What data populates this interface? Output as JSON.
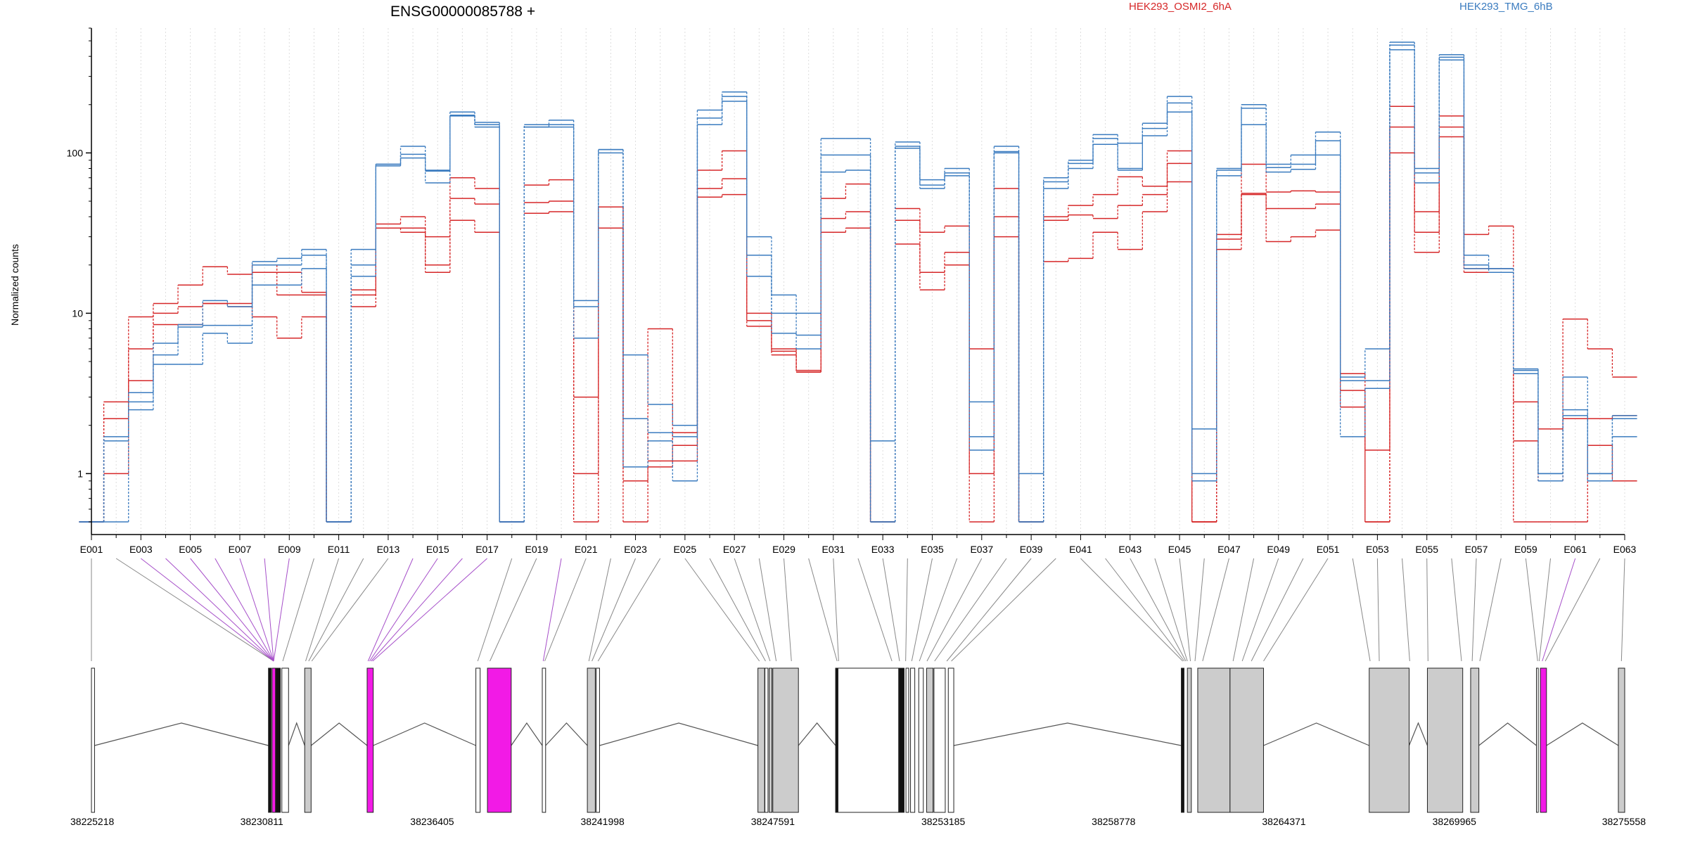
{
  "chart_data": {
    "type": "line",
    "title": "ENSG00000085788 +",
    "ylabel": "Normalized counts",
    "xlabel": "",
    "yscale": "log",
    "ylim": [
      0.5,
      600
    ],
    "yticks": [
      1,
      10,
      100
    ],
    "ytick_labels": [
      "1",
      "10",
      "100"
    ],
    "grid": "vertical-dotted",
    "legend": "top-right",
    "legend_entries": [
      {
        "name": "HEK293_OSMI2_6hA",
        "color": "#d62728"
      },
      {
        "name": "HEK293_TMG_6hB",
        "color": "#3a7bbf"
      }
    ],
    "x_tick_labels": [
      "E001",
      "E003",
      "E005",
      "E007",
      "E009",
      "E011",
      "E013",
      "E015",
      "E017",
      "E019",
      "E021",
      "E023",
      "E025",
      "E027",
      "E029",
      "E031",
      "E033",
      "E035",
      "E037",
      "E039",
      "E041",
      "E043",
      "E045",
      "E047",
      "E049",
      "E051",
      "E053",
      "E055",
      "E057",
      "E059",
      "E061",
      "E063"
    ],
    "categories": [
      "E001",
      "E002",
      "E003",
      "E004",
      "E005",
      "E006",
      "E007",
      "E008",
      "E009",
      "E010",
      "E011",
      "E012",
      "E013",
      "E014",
      "E015",
      "E016",
      "E017",
      "E018",
      "E019",
      "E020",
      "E021",
      "E022",
      "E023",
      "E024",
      "E025",
      "E026",
      "E027",
      "E028",
      "E029",
      "E030",
      "E031",
      "E032",
      "E033",
      "E034",
      "E035",
      "E036",
      "E037",
      "E038",
      "E039",
      "E040",
      "E041",
      "E042",
      "E043",
      "E044",
      "E045",
      "E046",
      "E047",
      "E048",
      "E049",
      "E050",
      "E051",
      "E052",
      "E053",
      "E054",
      "E055",
      "E056",
      "E057",
      "E058",
      "E059",
      "E060",
      "E061",
      "E062",
      "E063"
    ],
    "series": [
      {
        "group": "HEK293_OSMI2_6hA",
        "color": "#d62728",
        "values": [
          0.5,
          2.8,
          9.5,
          11.5,
          15,
          19.5,
          17.5,
          20,
          18,
          13.5,
          0.5,
          14,
          36,
          40,
          30,
          70,
          60,
          0.5,
          63,
          68,
          3,
          46,
          0.9,
          8,
          1.2,
          78,
          103,
          10,
          6,
          4.4,
          52,
          64,
          0.5,
          45,
          32,
          35,
          6,
          60,
          0.5,
          40,
          47,
          55,
          71,
          62,
          103,
          0.5,
          31,
          85,
          57,
          58,
          57,
          4.2,
          0.5,
          195,
          43,
          170,
          31,
          35,
          2.8,
          1.9,
          9.2,
          6,
          4
        ]
      },
      {
        "group": "HEK293_OSMI2_6hA",
        "color": "#d62728",
        "values": [
          0.5,
          2.2,
          6,
          10,
          11,
          11.5,
          11.5,
          18,
          13,
          13,
          0.5,
          11,
          34,
          34,
          20,
          52,
          48,
          0.5,
          49,
          50,
          1,
          46,
          2.2,
          1.2,
          1.8,
          60,
          69,
          9,
          5.8,
          4.3,
          39,
          43,
          0.5,
          38,
          18,
          24,
          1,
          40,
          0.5,
          38,
          41,
          39,
          47,
          55,
          86,
          0.5,
          29,
          56,
          45,
          45,
          48,
          3.3,
          1.4,
          145,
          32,
          145,
          19,
          19,
          1.6,
          0.9,
          2.2,
          2.2,
          2.3
        ]
      },
      {
        "group": "HEK293_OSMI2_6hA",
        "color": "#d62728",
        "values": [
          0.5,
          1.0,
          3.8,
          8.5,
          8.5,
          11.5,
          11,
          9.5,
          7,
          9.5,
          0.5,
          13,
          34,
          32,
          18,
          38,
          32,
          0.5,
          42,
          43,
          0.5,
          34,
          0.5,
          1.1,
          1.5,
          53,
          55,
          8.3,
          5.5,
          4.3,
          32,
          34,
          0.5,
          27,
          14,
          20,
          0.5,
          30,
          0.5,
          21,
          22,
          32,
          25,
          43,
          66,
          0.5,
          25,
          55,
          28,
          30,
          33,
          2.6,
          0.5,
          100,
          24,
          126,
          18,
          18,
          0.5,
          0.5,
          0.5,
          1.5,
          0.9
        ]
      },
      {
        "group": "HEK293_TMG_6hB",
        "color": "#3a7bbf",
        "values": [
          0.5,
          1.7,
          3.2,
          5.5,
          8.5,
          12,
          11,
          21,
          22,
          25,
          0.5,
          25,
          85,
          110,
          78,
          180,
          155,
          0.5,
          150,
          160,
          12,
          105,
          5.5,
          2.7,
          2.0,
          185,
          240,
          30,
          13,
          10,
          123,
          123,
          1.6,
          117,
          68,
          80,
          2.8,
          110,
          1.0,
          70,
          90,
          130,
          115,
          153,
          225,
          1.9,
          80,
          200,
          85,
          97,
          135,
          4.0,
          6.0,
          490,
          80,
          410,
          23,
          19,
          4.5,
          1.0,
          4.0,
          1.0,
          2.3
        ]
      },
      {
        "group": "HEK293_TMG_6hB",
        "color": "#3a7bbf",
        "values": [
          0.5,
          1.6,
          2.8,
          6.5,
          8.2,
          8.4,
          8.4,
          20,
          20,
          23,
          0.5,
          20,
          85,
          98,
          77,
          172,
          150,
          0.5,
          145,
          150,
          11,
          105,
          2.2,
          1.8,
          1.7,
          165,
          225,
          23,
          10,
          7.3,
          97,
          97,
          0.5,
          110,
          63,
          75,
          1.7,
          100,
          0.5,
          66,
          86,
          123,
          80,
          142,
          205,
          1.0,
          78,
          190,
          81,
          85,
          119,
          3.8,
          3.8,
          470,
          75,
          395,
          20,
          19,
          4.4,
          1.0,
          2.5,
          1.0,
          2.2
        ]
      },
      {
        "group": "HEK293_TMG_6hB",
        "color": "#3a7bbf",
        "values": [
          0.5,
          0.5,
          2.5,
          4.8,
          4.8,
          7.5,
          6.5,
          15,
          15,
          19,
          0.5,
          17,
          83,
          93,
          65,
          170,
          145,
          0.5,
          145,
          145,
          7,
          100,
          1.1,
          1.6,
          0.9,
          150,
          210,
          17,
          7.5,
          6.0,
          76,
          78,
          0.5,
          107,
          60,
          72,
          1.4,
          102,
          0.5,
          60,
          80,
          113,
          78,
          128,
          180,
          0.9,
          72,
          150,
          76,
          79,
          97,
          1.7,
          3.4,
          440,
          65,
          380,
          19,
          18,
          4.2,
          0.9,
          2.3,
          0.9,
          1.7
        ]
      }
    ],
    "axis_coordinates": {
      "labels": [
        "38225218",
        "38230811",
        "38236405",
        "38241998",
        "38247591",
        "38253185",
        "38258778",
        "38264371",
        "38269965",
        "38275558"
      ],
      "values": [
        38225218,
        38230811,
        38236405,
        38241998,
        38247591,
        38253185,
        38258778,
        38264371,
        38269965,
        38275558
      ]
    },
    "gene_model": {
      "exon_fills": [
        "#ffffff",
        "#cccccc",
        "#f21ae6",
        "#111111"
      ]
    }
  }
}
